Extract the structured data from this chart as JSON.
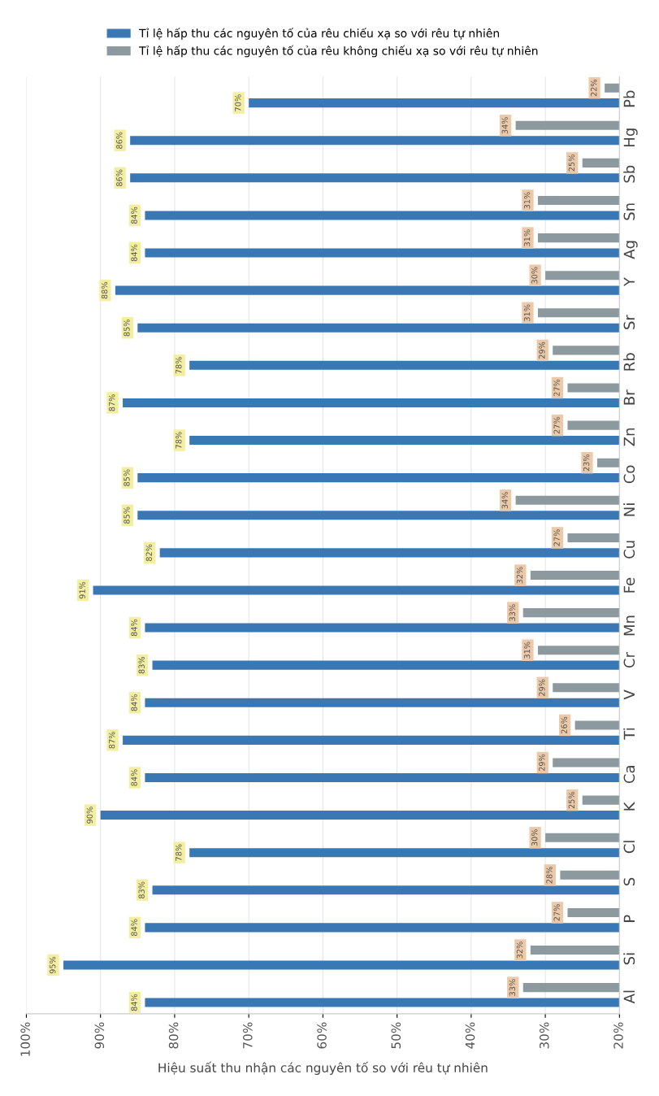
{
  "chart_data": {
    "type": "bar",
    "orientation": "horizontal",
    "xlabel": "Hiệu suất thu nhận các nguyên tố so với rêu tự nhiên",
    "categories": [
      "Pb",
      "Hg",
      "Sb",
      "Sn",
      "Ag",
      "Y",
      "Sr",
      "Rb",
      "Br",
      "Zn",
      "Co",
      "Ni",
      "Cu",
      "Fe",
      "Mn",
      "Cr",
      "V",
      "Ti",
      "Ca",
      "K",
      "Cl",
      "S",
      "P",
      "Si",
      "Al"
    ],
    "series": [
      {
        "name": "Tỉ lệ hấp thu các nguyên tố của rêu chiếu xạ so với rêu tự nhiên",
        "color": "#3a78b5",
        "values": [
          70,
          86,
          86,
          84,
          84,
          88,
          85,
          78,
          87,
          78,
          85,
          85,
          82,
          91,
          84,
          83,
          84,
          87,
          84,
          90,
          78,
          83,
          84,
          95,
          84
        ],
        "value_labels": [
          "70%",
          "86%",
          "86%",
          "84%",
          "84%",
          "88%",
          "85%",
          "78%",
          "87%",
          "78%",
          "85%",
          "85%",
          "82%",
          "91%",
          "84%",
          "83%",
          "84%",
          "87%",
          "84%",
          "90%",
          "78%",
          "83%",
          "84%",
          "95%",
          "84%"
        ]
      },
      {
        "name": "Tỉ lệ hấp thu các nguyên tố của rêu không chiếu xạ so với rêu tự nhiên",
        "color": "#8c9aa0",
        "values": [
          22,
          34,
          25,
          31,
          31,
          30,
          31,
          29,
          27,
          27,
          23,
          34,
          27,
          32,
          33,
          31,
          29,
          26,
          29,
          25,
          30,
          28,
          27,
          32,
          33
        ],
        "value_labels": [
          "22%",
          "34%",
          "25%",
          "31%",
          "31%",
          "30%",
          "31%",
          "29%",
          "27%",
          "27%",
          "23%",
          "34%",
          "27%",
          "32%",
          "33%",
          "31%",
          "29%",
          "26%",
          "29%",
          "25%",
          "30%",
          "28%",
          "27%",
          "32%",
          "33%"
        ]
      }
    ],
    "xlim": [
      100,
      20
    ],
    "xticks": [
      {
        "value": 100,
        "label": "100%"
      },
      {
        "value": 90,
        "label": "90%"
      },
      {
        "value": 80,
        "label": "80%"
      },
      {
        "value": 70,
        "label": "70%"
      },
      {
        "value": 60,
        "label": "60%"
      },
      {
        "value": 50,
        "label": "50%"
      },
      {
        "value": 40,
        "label": "40%"
      },
      {
        "value": 30,
        "label": "30%"
      },
      {
        "value": 20,
        "label": "20%"
      }
    ],
    "grid": "x",
    "legend": "top"
  }
}
